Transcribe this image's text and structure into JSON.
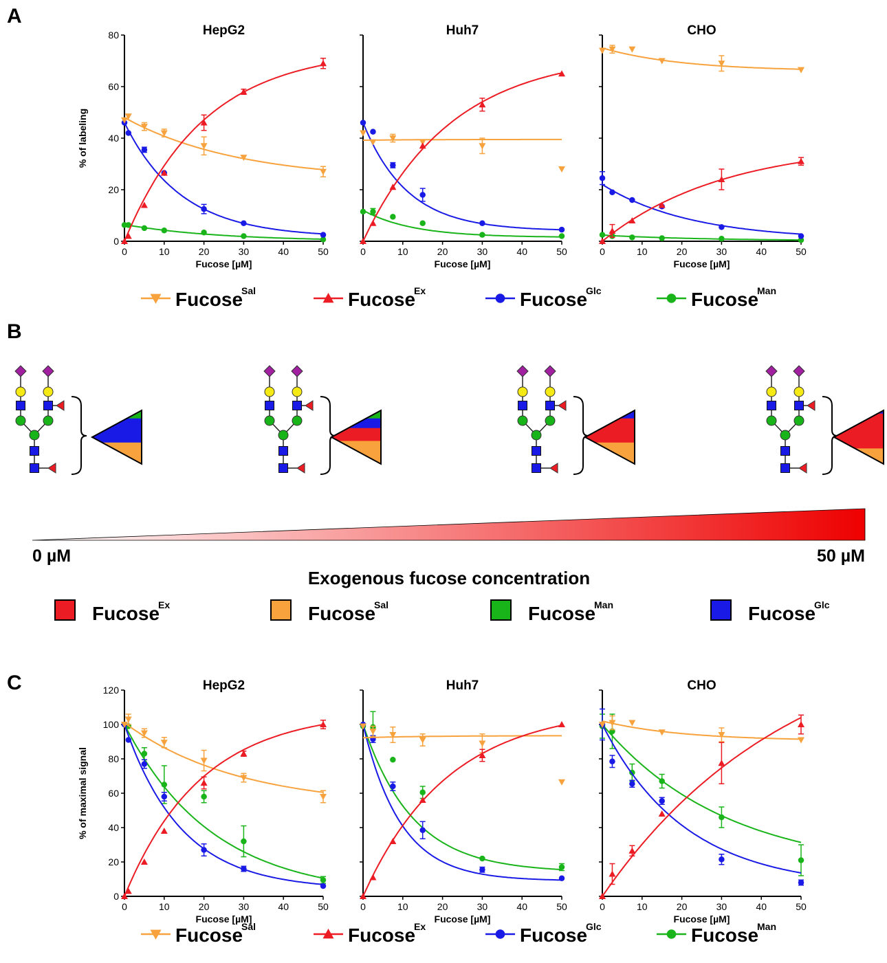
{
  "panel_letters": {
    "a": "A",
    "b": "B",
    "c": "C"
  },
  "colors": {
    "sal": "#f7a23c",
    "ex": "#ec1c24",
    "glc": "#1a1ae6",
    "man": "#19b419",
    "sialic": "#a020a0",
    "galactose": "#f5ea14",
    "glcnac": "#1a1ae6",
    "mannose": "#19b419",
    "fucose": "#ec1c24"
  },
  "series_legend": [
    {
      "key": "sal",
      "base": "Fucose",
      "sup": "Sal",
      "marker": "triangle-down"
    },
    {
      "key": "ex",
      "base": "Fucose",
      "sup": "Ex",
      "marker": "triangle-up"
    },
    {
      "key": "glc",
      "base": "Fucose",
      "sup": "Glc",
      "marker": "circle"
    },
    {
      "key": "man",
      "base": "Fucose",
      "sup": "Man",
      "marker": "circle"
    }
  ],
  "panel_b": {
    "gradient_start_label": "0 µM",
    "gradient_end_label": "50 µM",
    "axis_title": "Exogenous fucose concentration",
    "glycan_icons": [
      "sialic-acid-diamond",
      "galactose-circle",
      "glcnac-square",
      "mannose-circle",
      "fucose-triangle"
    ],
    "triangles": [
      {
        "bands": [
          {
            "key": "man",
            "frac": 0.15
          },
          {
            "key": "glc",
            "frac": 0.45
          },
          {
            "key": "sal",
            "frac": 0.4
          }
        ]
      },
      {
        "bands": [
          {
            "key": "man",
            "frac": 0.15
          },
          {
            "key": "glc",
            "frac": 0.18
          },
          {
            "key": "ex",
            "frac": 0.24
          },
          {
            "key": "sal",
            "frac": 0.43
          }
        ]
      },
      {
        "bands": [
          {
            "key": "glc",
            "frac": 0.15
          },
          {
            "key": "ex",
            "frac": 0.45
          },
          {
            "key": "sal",
            "frac": 0.4
          }
        ]
      },
      {
        "bands": [
          {
            "key": "glc",
            "frac": 0.06
          },
          {
            "key": "ex",
            "frac": 0.65
          },
          {
            "key": "sal",
            "frac": 0.29
          }
        ]
      }
    ],
    "color_legend": [
      {
        "key": "ex",
        "base": "Fucose",
        "sup": "Ex"
      },
      {
        "key": "sal",
        "base": "Fucose",
        "sup": "Sal"
      },
      {
        "key": "man",
        "base": "Fucose",
        "sup": "Man"
      },
      {
        "key": "glc",
        "base": "Fucose",
        "sup": "Glc"
      }
    ]
  },
  "chart_data": [
    {
      "type": "line",
      "panel": "A",
      "title": "HepG2",
      "xlabel": "Fucose [µM]",
      "ylabel": "% of labeling",
      "xlim": [
        0,
        50
      ],
      "ylim": [
        0,
        80
      ],
      "xticks": [
        0,
        10,
        20,
        30,
        40,
        50
      ],
      "yticks": [
        0,
        20,
        40,
        60,
        80
      ],
      "series": [
        {
          "key": "sal",
          "x": [
            0,
            1,
            5,
            10,
            20,
            30,
            50
          ],
          "y": [
            47,
            48.5,
            44.5,
            42,
            37,
            32.5,
            27
          ],
          "err": [
            0,
            0,
            1.5,
            1.5,
            3.5,
            0,
            2
          ],
          "fit": {
            "a": 23.5,
            "b": 24.5,
            "k": 0.035
          }
        },
        {
          "key": "ex",
          "x": [
            0,
            1,
            5,
            10,
            20,
            30,
            50
          ],
          "y": [
            0,
            2,
            14,
            26.5,
            46,
            58,
            69
          ],
          "err": [
            0,
            0,
            0,
            0,
            3,
            1,
            2
          ],
          "fit": {
            "a": 74.5,
            "b": -74.5,
            "k": 0.05
          }
        },
        {
          "key": "glc",
          "x": [
            0,
            1,
            5,
            10,
            20,
            30,
            50
          ],
          "y": [
            46,
            42,
            35.5,
            26.5,
            12.5,
            7,
            2.5
          ],
          "err": [
            0,
            0,
            1,
            0,
            1.8,
            0,
            0
          ],
          "fit": {
            "a": 1.5,
            "b": 44.5,
            "k": 0.07
          }
        },
        {
          "key": "man",
          "x": [
            0,
            1,
            5,
            10,
            20,
            30,
            50
          ],
          "y": [
            6.3,
            6.3,
            5.1,
            4.2,
            3.4,
            2,
            0.7
          ],
          "err": [
            0,
            0,
            0,
            0,
            0,
            0,
            0
          ],
          "fit": {
            "a": 0,
            "b": 6.5,
            "k": 0.042
          }
        }
      ]
    },
    {
      "type": "line",
      "panel": "A",
      "title": "Huh7",
      "xlabel": "Fucose [µM]",
      "ylabel": "",
      "xlim": [
        0,
        50
      ],
      "ylim": [
        0,
        80
      ],
      "xticks": [
        0,
        10,
        20,
        30,
        40,
        50
      ],
      "yticks": [
        0,
        20,
        40,
        60,
        80
      ],
      "series": [
        {
          "key": "sal",
          "x": [
            0,
            2.5,
            7.5,
            15,
            30,
            50
          ],
          "y": [
            42,
            38.5,
            40,
            38.5,
            37,
            28
          ],
          "err": [
            0,
            0,
            1.5,
            0,
            3,
            0
          ],
          "fit": {
            "a": 39.5,
            "b": -0.3,
            "k": 0.068
          }
        },
        {
          "key": "ex",
          "x": [
            0,
            2.5,
            7.5,
            15,
            30,
            50
          ],
          "y": [
            0,
            7,
            21,
            37,
            53,
            65
          ],
          "err": [
            0,
            0,
            0,
            0,
            2.5,
            0
          ],
          "fit": {
            "a": 73,
            "b": -73,
            "k": 0.045
          }
        },
        {
          "key": "glc",
          "x": [
            0,
            2.5,
            7.5,
            15,
            30,
            50
          ],
          "y": [
            46,
            42.5,
            29.5,
            18,
            7,
            4.5
          ],
          "err": [
            0,
            0,
            1,
            2.5,
            0,
            0
          ],
          "fit": {
            "a": 4,
            "b": 42,
            "k": 0.09
          }
        },
        {
          "key": "man",
          "x": [
            0,
            2.5,
            7.5,
            15,
            30,
            50
          ],
          "y": [
            11.5,
            11.5,
            9.5,
            7,
            2.5,
            2
          ],
          "err": [
            0,
            1.2,
            0,
            0,
            0,
            0
          ],
          "fit": {
            "a": 1.5,
            "b": 10.5,
            "k": 0.08
          }
        }
      ]
    },
    {
      "type": "line",
      "panel": "A",
      "title": "CHO",
      "xlabel": "Fucose [µM]",
      "ylabel": "",
      "xlim": [
        0,
        50
      ],
      "ylim": [
        0,
        80
      ],
      "xticks": [
        0,
        10,
        20,
        30,
        40,
        50
      ],
      "yticks": [
        0,
        20,
        40,
        60,
        80
      ],
      "series": [
        {
          "key": "sal",
          "x": [
            0,
            2.5,
            7.5,
            15,
            30,
            50
          ],
          "y": [
            74,
            74.5,
            74.5,
            70,
            69,
            66.5
          ],
          "err": [
            0,
            1.5,
            0,
            0,
            3,
            0
          ],
          "fit": {
            "a": 66,
            "b": 9,
            "k": 0.05
          }
        },
        {
          "key": "ex",
          "x": [
            0,
            2.5,
            7.5,
            15,
            30,
            50
          ],
          "y": [
            0,
            4,
            8,
            14,
            24,
            31
          ],
          "err": [
            0,
            2.5,
            0,
            0,
            4,
            1.5
          ],
          "fit": {
            "a": 38,
            "b": -38,
            "k": 0.033
          }
        },
        {
          "key": "glc",
          "x": [
            0,
            2.5,
            7.5,
            15,
            30,
            50
          ],
          "y": [
            24.5,
            19,
            16,
            13.5,
            5.5,
            2
          ],
          "err": [
            2.5,
            0,
            0,
            0,
            0,
            0
          ],
          "fit": {
            "a": 0.5,
            "b": 21.5,
            "k": 0.045
          }
        },
        {
          "key": "man",
          "x": [
            0,
            2.5,
            7.5,
            15,
            30,
            50
          ],
          "y": [
            2.5,
            2,
            1.5,
            1.2,
            1,
            0.5
          ],
          "err": [
            0,
            0,
            0,
            0,
            0,
            0
          ],
          "fit": {
            "a": 0.2,
            "b": 2.2,
            "k": 0.04
          }
        }
      ]
    },
    {
      "type": "line",
      "panel": "C",
      "title": "HepG2",
      "xlabel": "Fucose [µM]",
      "ylabel": "% of maximal signal",
      "xlim": [
        0,
        50
      ],
      "ylim": [
        0,
        120
      ],
      "xticks": [
        0,
        10,
        20,
        30,
        40,
        50
      ],
      "yticks": [
        0,
        20,
        40,
        60,
        80,
        100,
        120
      ],
      "series": [
        {
          "key": "sal",
          "x": [
            0,
            1,
            5,
            10,
            20,
            30,
            50
          ],
          "y": [
            100,
            103,
            95,
            89.5,
            79,
            69,
            58
          ],
          "err": [
            0,
            3,
            2.5,
            3,
            6,
            2.5,
            3.5
          ],
          "fit": {
            "a": 52,
            "b": 49,
            "k": 0.035
          }
        },
        {
          "key": "ex",
          "x": [
            0,
            1,
            5,
            10,
            20,
            30,
            50
          ],
          "y": [
            0,
            3,
            20,
            38,
            66,
            83,
            100
          ],
          "err": [
            0,
            0,
            0,
            0,
            3.5,
            1.5,
            2.5
          ],
          "fit": {
            "a": 108,
            "b": -108,
            "k": 0.052
          }
        },
        {
          "key": "glc",
          "x": [
            0,
            1,
            5,
            10,
            20,
            30,
            50
          ],
          "y": [
            100,
            91,
            77,
            58,
            27,
            16,
            6
          ],
          "err": [
            0,
            0,
            2.5,
            2.5,
            3.5,
            1.5,
            0
          ],
          "fit": {
            "a": 4,
            "b": 96,
            "k": 0.07
          }
        },
        {
          "key": "man",
          "x": [
            0,
            1,
            5,
            10,
            20,
            30,
            50
          ],
          "y": [
            100,
            99,
            83,
            65,
            58,
            32,
            9.5
          ],
          "err": [
            0,
            0,
            3.5,
            11,
            3.5,
            9,
            2
          ],
          "fit": {
            "a": 0,
            "b": 100,
            "k": 0.045
          }
        }
      ]
    },
    {
      "type": "line",
      "panel": "C",
      "title": "Huh7",
      "xlabel": "Fucose [µM]",
      "ylabel": "",
      "xlim": [
        0,
        50
      ],
      "ylim": [
        0,
        120
      ],
      "xticks": [
        0,
        10,
        20,
        30,
        40,
        50
      ],
      "yticks": [
        0,
        20,
        40,
        60,
        80,
        100,
        120
      ],
      "series": [
        {
          "key": "sal",
          "x": [
            0,
            2.5,
            7.5,
            15,
            30,
            50
          ],
          "y": [
            99,
            96,
            94,
            91,
            89,
            66.5
          ],
          "err": [
            0,
            3,
            4.5,
            3.5,
            5.5,
            0
          ],
          "fit": {
            "a": 93.5,
            "b": -1.2,
            "k": 0.06
          }
        },
        {
          "key": "ex",
          "x": [
            0,
            2.5,
            7.5,
            15,
            30,
            50
          ],
          "y": [
            0,
            11,
            32,
            56,
            82,
            100
          ],
          "err": [
            0,
            0,
            0,
            0,
            3.5,
            0
          ],
          "fit": {
            "a": 110,
            "b": -110,
            "k": 0.047
          }
        },
        {
          "key": "glc",
          "x": [
            0,
            2.5,
            7.5,
            15,
            30,
            50
          ],
          "y": [
            100,
            91.5,
            64,
            38.5,
            15.5,
            10.5
          ],
          "err": [
            0,
            2,
            2.5,
            5,
            1.5,
            0
          ],
          "fit": {
            "a": 9,
            "b": 91,
            "k": 0.105
          }
        },
        {
          "key": "man",
          "x": [
            0,
            2.5,
            7.5,
            15,
            30,
            50
          ],
          "y": [
            99,
            98.5,
            79.5,
            60.5,
            22,
            17
          ],
          "err": [
            0,
            9,
            0,
            3.5,
            0,
            2
          ],
          "fit": {
            "a": 14,
            "b": 86,
            "k": 0.08
          }
        }
      ]
    },
    {
      "type": "line",
      "panel": "C",
      "title": "CHO",
      "xlabel": "Fucose [µM]",
      "ylabel": "",
      "xlim": [
        0,
        50
      ],
      "ylim": [
        0,
        120
      ],
      "xticks": [
        0,
        10,
        20,
        30,
        40,
        50
      ],
      "yticks": [
        0,
        20,
        40,
        60,
        80,
        100,
        120
      ],
      "series": [
        {
          "key": "sal",
          "x": [
            0,
            2.5,
            7.5,
            15,
            30,
            50
          ],
          "y": [
            100,
            101,
            101,
            95.5,
            94,
            91
          ],
          "err": [
            0,
            4,
            0,
            0,
            4,
            0
          ],
          "fit": {
            "a": 90.5,
            "b": 11.5,
            "k": 0.05
          }
        },
        {
          "key": "ex",
          "x": [
            0,
            2.5,
            7.5,
            15,
            30,
            50
          ],
          "y": [
            0,
            13,
            26.5,
            48,
            77.5,
            100
          ],
          "err": [
            0,
            6,
            3,
            0,
            12,
            5.5
          ],
          "fit": {
            "a": 160,
            "b": -160,
            "k": 0.021
          }
        },
        {
          "key": "glc",
          "x": [
            0,
            2.5,
            7.5,
            15,
            30,
            50
          ],
          "y": [
            100,
            78.5,
            65.5,
            55.5,
            21.5,
            8
          ],
          "err": [
            9,
            3.5,
            2,
            2,
            3,
            1.5
          ],
          "fit": {
            "a": 5,
            "b": 95,
            "k": 0.048
          }
        },
        {
          "key": "man",
          "x": [
            0,
            2.5,
            7.5,
            15,
            30,
            50
          ],
          "y": [
            99,
            96,
            72,
            67,
            46,
            21
          ],
          "err": [
            7,
            10,
            5,
            4,
            6,
            9
          ],
          "fit": {
            "a": 14,
            "b": 86,
            "k": 0.032
          }
        }
      ]
    }
  ]
}
